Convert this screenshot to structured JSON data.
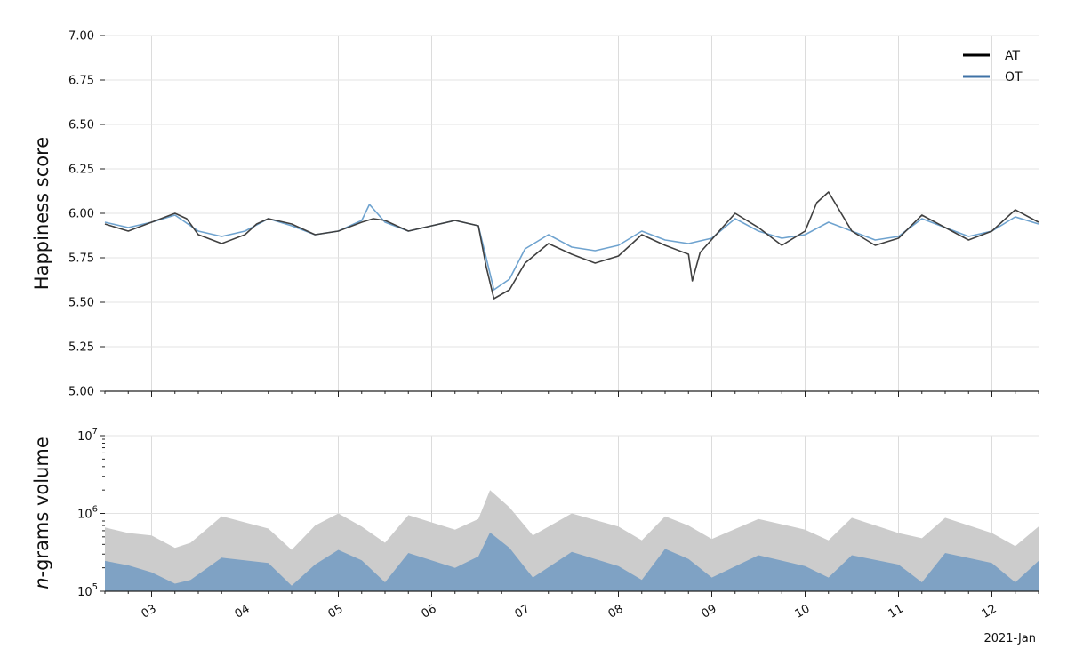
{
  "chart_data": [
    {
      "id": "happiness",
      "type": "line",
      "ylabel": "Happiness score",
      "ylim": [
        5.0,
        7.0
      ],
      "yticks": [
        "5.00",
        "5.25",
        "5.50",
        "5.75",
        "6.00",
        "6.25",
        "6.50",
        "6.75",
        "7.00"
      ],
      "grid": true,
      "legend": "top-right",
      "series": [
        {
          "name": "AT",
          "color": "#404040",
          "legend_color": "#000000",
          "points": [
            [
              "2021-01-02 12:00",
              5.94
            ],
            [
              "2021-01-02 18:00",
              5.9
            ],
            [
              "2021-01-03 00:00",
              5.95
            ],
            [
              "2021-01-03 06:00",
              6.0
            ],
            [
              "2021-01-03 09:00",
              5.97
            ],
            [
              "2021-01-03 12:00",
              5.88
            ],
            [
              "2021-01-03 18:00",
              5.83
            ],
            [
              "2021-01-04 00:00",
              5.88
            ],
            [
              "2021-01-04 03:00",
              5.94
            ],
            [
              "2021-01-04 06:00",
              5.97
            ],
            [
              "2021-01-04 12:00",
              5.94
            ],
            [
              "2021-01-04 18:00",
              5.88
            ],
            [
              "2021-01-05 00:00",
              5.9
            ],
            [
              "2021-01-05 06:00",
              5.95
            ],
            [
              "2021-01-05 09:00",
              5.97
            ],
            [
              "2021-01-05 12:00",
              5.96
            ],
            [
              "2021-01-05 18:00",
              5.9
            ],
            [
              "2021-01-06 00:00",
              5.93
            ],
            [
              "2021-01-06 06:00",
              5.96
            ],
            [
              "2021-01-06 12:00",
              5.93
            ],
            [
              "2021-01-06 14:00",
              5.7
            ],
            [
              "2021-01-06 16:00",
              5.52
            ],
            [
              "2021-01-06 20:00",
              5.57
            ],
            [
              "2021-01-07 00:00",
              5.72
            ],
            [
              "2021-01-07 06:00",
              5.83
            ],
            [
              "2021-01-07 12:00",
              5.77
            ],
            [
              "2021-01-07 18:00",
              5.72
            ],
            [
              "2021-01-08 00:00",
              5.76
            ],
            [
              "2021-01-08 06:00",
              5.88
            ],
            [
              "2021-01-08 12:00",
              5.82
            ],
            [
              "2021-01-08 18:00",
              5.77
            ],
            [
              "2021-01-08 19:00",
              5.62
            ],
            [
              "2021-01-08 21:00",
              5.78
            ],
            [
              "2021-01-09 06:00",
              6.0
            ],
            [
              "2021-01-09 12:00",
              5.92
            ],
            [
              "2021-01-09 18:00",
              5.82
            ],
            [
              "2021-01-10 00:00",
              5.9
            ],
            [
              "2021-01-10 03:00",
              6.06
            ],
            [
              "2021-01-10 06:00",
              6.12
            ],
            [
              "2021-01-10 12:00",
              5.9
            ],
            [
              "2021-01-10 18:00",
              5.82
            ],
            [
              "2021-01-11 00:00",
              5.86
            ],
            [
              "2021-01-11 06:00",
              5.99
            ],
            [
              "2021-01-11 12:00",
              5.92
            ],
            [
              "2021-01-11 18:00",
              5.85
            ],
            [
              "2021-01-12 00:00",
              5.9
            ],
            [
              "2021-01-12 06:00",
              6.02
            ],
            [
              "2021-01-12 12:00",
              5.95
            ]
          ]
        },
        {
          "name": "OT",
          "color": "#6fa3cf",
          "legend_color": "#3f72a6",
          "points": [
            [
              "2021-01-02 12:00",
              5.95
            ],
            [
              "2021-01-02 18:00",
              5.92
            ],
            [
              "2021-01-03 00:00",
              5.95
            ],
            [
              "2021-01-03 06:00",
              5.99
            ],
            [
              "2021-01-03 12:00",
              5.9
            ],
            [
              "2021-01-03 18:00",
              5.87
            ],
            [
              "2021-01-04 00:00",
              5.9
            ],
            [
              "2021-01-04 06:00",
              5.97
            ],
            [
              "2021-01-04 12:00",
              5.93
            ],
            [
              "2021-01-04 18:00",
              5.88
            ],
            [
              "2021-01-05 00:00",
              5.9
            ],
            [
              "2021-01-05 06:00",
              5.96
            ],
            [
              "2021-01-05 08:00",
              6.05
            ],
            [
              "2021-01-05 12:00",
              5.95
            ],
            [
              "2021-01-05 18:00",
              5.9
            ],
            [
              "2021-01-06 00:00",
              5.93
            ],
            [
              "2021-01-06 06:00",
              5.96
            ],
            [
              "2021-01-06 12:00",
              5.93
            ],
            [
              "2021-01-06 14:00",
              5.75
            ],
            [
              "2021-01-06 16:00",
              5.57
            ],
            [
              "2021-01-06 20:00",
              5.63
            ],
            [
              "2021-01-07 00:00",
              5.8
            ],
            [
              "2021-01-07 06:00",
              5.88
            ],
            [
              "2021-01-07 12:00",
              5.81
            ],
            [
              "2021-01-07 18:00",
              5.79
            ],
            [
              "2021-01-08 00:00",
              5.82
            ],
            [
              "2021-01-08 06:00",
              5.9
            ],
            [
              "2021-01-08 12:00",
              5.85
            ],
            [
              "2021-01-08 18:00",
              5.83
            ],
            [
              "2021-01-09 00:00",
              5.86
            ],
            [
              "2021-01-09 06:00",
              5.97
            ],
            [
              "2021-01-09 12:00",
              5.9
            ],
            [
              "2021-01-09 18:00",
              5.86
            ],
            [
              "2021-01-10 00:00",
              5.88
            ],
            [
              "2021-01-10 06:00",
              5.95
            ],
            [
              "2021-01-10 12:00",
              5.9
            ],
            [
              "2021-01-10 18:00",
              5.85
            ],
            [
              "2021-01-11 00:00",
              5.87
            ],
            [
              "2021-01-11 06:00",
              5.97
            ],
            [
              "2021-01-11 12:00",
              5.92
            ],
            [
              "2021-01-11 18:00",
              5.87
            ],
            [
              "2021-01-12 00:00",
              5.9
            ],
            [
              "2021-01-12 06:00",
              5.98
            ],
            [
              "2021-01-12 12:00",
              5.94
            ]
          ]
        }
      ]
    },
    {
      "id": "volume",
      "type": "area",
      "ylabel_italic": "n",
      "ylabel_rest": "-grams volume",
      "yscale": "log",
      "ylim": [
        100000,
        10000000
      ],
      "yticks": [
        {
          "base": "10",
          "exp": "5"
        },
        {
          "base": "10",
          "exp": "6"
        },
        {
          "base": "10",
          "exp": "7"
        }
      ],
      "xlim": [
        "2021-01-02 12:00",
        "2021-01-12 12:00"
      ],
      "xticks": [
        "03",
        "04",
        "05",
        "06",
        "07",
        "08",
        "09",
        "10",
        "11",
        "12"
      ],
      "xaxis_note": "2021-Jan",
      "grid": true,
      "series": [
        {
          "name": "AT",
          "color": "#cccccc",
          "points": [
            [
              "2021-01-02 12:00",
              660000
            ],
            [
              "2021-01-02 18:00",
              560000
            ],
            [
              "2021-01-03 00:00",
              520000
            ],
            [
              "2021-01-03 06:00",
              360000
            ],
            [
              "2021-01-03 10:00",
              420000
            ],
            [
              "2021-01-03 18:00",
              920000
            ],
            [
              "2021-01-04 06:00",
              640000
            ],
            [
              "2021-01-04 12:00",
              340000
            ],
            [
              "2021-01-04 18:00",
              700000
            ],
            [
              "2021-01-05 00:00",
              1000000
            ],
            [
              "2021-01-05 06:00",
              680000
            ],
            [
              "2021-01-05 12:00",
              420000
            ],
            [
              "2021-01-05 18:00",
              950000
            ],
            [
              "2021-01-06 06:00",
              620000
            ],
            [
              "2021-01-06 12:00",
              850000
            ],
            [
              "2021-01-06 15:00",
              2000000
            ],
            [
              "2021-01-06 20:00",
              1200000
            ],
            [
              "2021-01-07 02:00",
              520000
            ],
            [
              "2021-01-07 12:00",
              1000000
            ],
            [
              "2021-01-08 00:00",
              680000
            ],
            [
              "2021-01-08 06:00",
              450000
            ],
            [
              "2021-01-08 12:00",
              920000
            ],
            [
              "2021-01-08 18:00",
              700000
            ],
            [
              "2021-01-09 00:00",
              470000
            ],
            [
              "2021-01-09 12:00",
              850000
            ],
            [
              "2021-01-10 00:00",
              620000
            ],
            [
              "2021-01-10 06:00",
              450000
            ],
            [
              "2021-01-10 12:00",
              880000
            ],
            [
              "2021-01-11 00:00",
              560000
            ],
            [
              "2021-01-11 06:00",
              480000
            ],
            [
              "2021-01-11 12:00",
              880000
            ],
            [
              "2021-01-12 00:00",
              560000
            ],
            [
              "2021-01-12 06:00",
              380000
            ],
            [
              "2021-01-12 12:00",
              680000
            ]
          ]
        },
        {
          "name": "OT",
          "color": "#7fa2c4",
          "points": [
            [
              "2021-01-02 12:00",
              245000
            ],
            [
              "2021-01-02 18:00",
              215000
            ],
            [
              "2021-01-03 00:00",
              175000
            ],
            [
              "2021-01-03 06:00",
              125000
            ],
            [
              "2021-01-03 10:00",
              140000
            ],
            [
              "2021-01-03 18:00",
              270000
            ],
            [
              "2021-01-04 06:00",
              230000
            ],
            [
              "2021-01-04 12:00",
              118000
            ],
            [
              "2021-01-04 18:00",
              220000
            ],
            [
              "2021-01-05 00:00",
              340000
            ],
            [
              "2021-01-05 06:00",
              250000
            ],
            [
              "2021-01-05 12:00",
              130000
            ],
            [
              "2021-01-05 18:00",
              310000
            ],
            [
              "2021-01-06 06:00",
              200000
            ],
            [
              "2021-01-06 12:00",
              280000
            ],
            [
              "2021-01-06 15:00",
              570000
            ],
            [
              "2021-01-06 20:00",
              360000
            ],
            [
              "2021-01-07 02:00",
              150000
            ],
            [
              "2021-01-07 12:00",
              320000
            ],
            [
              "2021-01-08 00:00",
              210000
            ],
            [
              "2021-01-08 06:00",
              140000
            ],
            [
              "2021-01-08 12:00",
              350000
            ],
            [
              "2021-01-08 18:00",
              260000
            ],
            [
              "2021-01-09 00:00",
              150000
            ],
            [
              "2021-01-09 12:00",
              290000
            ],
            [
              "2021-01-10 00:00",
              210000
            ],
            [
              "2021-01-10 06:00",
              150000
            ],
            [
              "2021-01-10 12:00",
              290000
            ],
            [
              "2021-01-11 00:00",
              220000
            ],
            [
              "2021-01-11 06:00",
              130000
            ],
            [
              "2021-01-11 12:00",
              310000
            ],
            [
              "2021-01-12 00:00",
              230000
            ],
            [
              "2021-01-12 06:00",
              130000
            ],
            [
              "2021-01-12 12:00",
              245000
            ]
          ]
        }
      ]
    }
  ]
}
